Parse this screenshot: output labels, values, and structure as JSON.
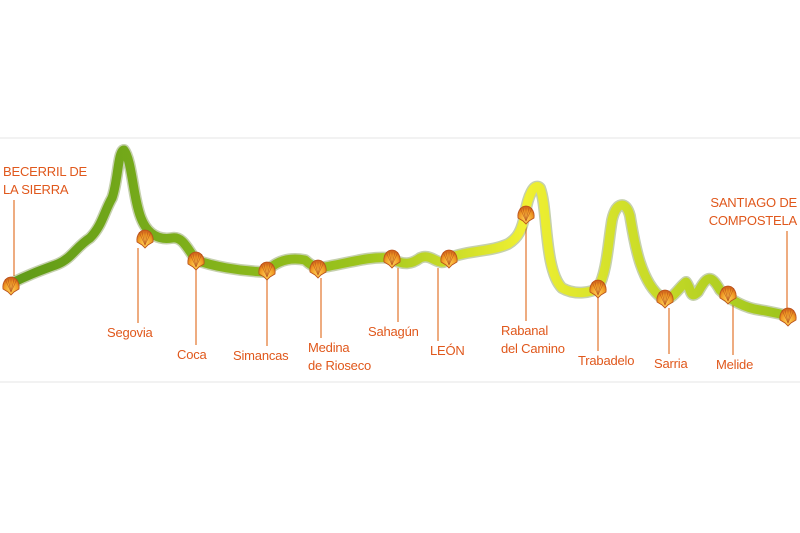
{
  "title": "",
  "profile": {
    "colors": {
      "start": "#5f9a18",
      "mid": "#9cc41c",
      "end": "#f0f032",
      "label": "#e0581c",
      "leader": "#e2742c",
      "shell": "#e7871e"
    }
  },
  "stages": [
    {
      "name": "becerril",
      "lines": [
        "BECERRIL DE",
        "LA SIERRA"
      ],
      "icon": "scallop-shell-icon"
    },
    {
      "name": "segovia",
      "lines": [
        "Segovia"
      ],
      "icon": "scallop-shell-icon"
    },
    {
      "name": "coca",
      "lines": [
        "Coca"
      ],
      "icon": "scallop-shell-icon"
    },
    {
      "name": "simancas",
      "lines": [
        "Simancas"
      ],
      "icon": "scallop-shell-icon"
    },
    {
      "name": "medina",
      "lines": [
        "Medina",
        "de Rioseco"
      ],
      "icon": "scallop-shell-icon"
    },
    {
      "name": "sahagun",
      "lines": [
        "Sahagún"
      ],
      "icon": "scallop-shell-icon"
    },
    {
      "name": "leon",
      "lines": [
        "LEÓN"
      ],
      "icon": "scallop-shell-icon"
    },
    {
      "name": "rabanal",
      "lines": [
        "Rabanal",
        "del Camino"
      ],
      "icon": "scallop-shell-icon"
    },
    {
      "name": "trabadelo",
      "lines": [
        "Trabadelo"
      ],
      "icon": "scallop-shell-icon"
    },
    {
      "name": "sarria",
      "lines": [
        "Sarria"
      ],
      "icon": "scallop-shell-icon"
    },
    {
      "name": "melide",
      "lines": [
        "Melide"
      ],
      "icon": "scallop-shell-icon"
    },
    {
      "name": "santiago",
      "lines": [
        "SANTIAGO DE",
        "COMPOSTELA"
      ],
      "icon": "scallop-shell-icon"
    }
  ]
}
